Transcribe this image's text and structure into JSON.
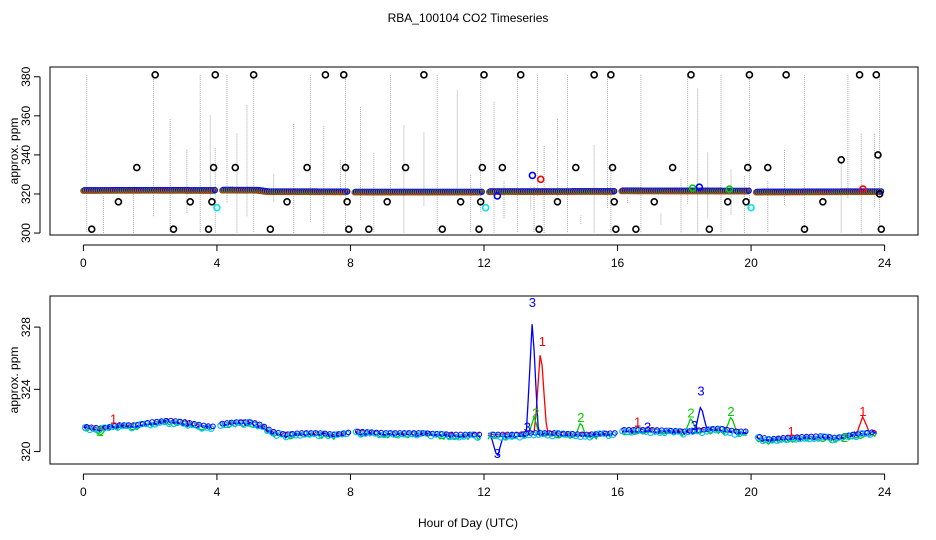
{
  "chart_data": [
    {
      "type": "scatter",
      "title": "RBA_100104  CO2 Timeseries",
      "ylabel": "approx. ppm",
      "xlim": [
        -1,
        25
      ],
      "ylim": [
        299,
        385
      ],
      "xticks": [
        0,
        4,
        8,
        12,
        16,
        20,
        24
      ],
      "yticks": [
        300,
        320,
        340,
        360,
        380
      ],
      "baseline": [
        [
          0,
          321.8
        ],
        [
          2,
          321.9
        ],
        [
          3.9,
          321.8
        ],
        [
          4.1,
          322
        ],
        [
          5.2,
          321.9
        ],
        [
          5.5,
          321.2
        ],
        [
          7.9,
          321.1
        ],
        [
          8.1,
          321
        ],
        [
          11.9,
          321
        ],
        [
          12.1,
          321.2
        ],
        [
          15.9,
          321.3
        ],
        [
          16.1,
          321.6
        ],
        [
          19.9,
          321.5
        ],
        [
          20.1,
          321.0
        ],
        [
          23.8,
          321.2
        ]
      ],
      "gaps": [
        [
          3.9,
          4.1
        ],
        [
          7.9,
          8.1
        ],
        [
          11.9,
          12.1
        ],
        [
          15.9,
          16.1
        ],
        [
          19.9,
          20.1
        ]
      ],
      "vertical_lines_x": [
        0.1,
        0.6,
        1.5,
        2.1,
        2.6,
        3.1,
        3.5,
        3.8,
        3.95,
        4.3,
        4.6,
        4.9,
        5.1,
        5.7,
        6.3,
        6.8,
        7.2,
        7.7,
        7.85,
        8.3,
        8.7,
        9.2,
        9.6,
        10.2,
        10.6,
        11.2,
        11.6,
        11.9,
        12.3,
        12.6,
        13.0,
        13.4,
        13.5,
        13.6,
        13.8,
        14.2,
        14.5,
        14.9,
        15.3,
        15.7,
        15.8,
        16.3,
        16.7,
        17.3,
        17.9,
        18.1,
        18.4,
        18.7,
        19.1,
        19.4,
        19.8,
        19.95,
        20.5,
        21.0,
        21.6,
        22.1,
        22.7,
        22.9,
        23.3,
        23.7,
        23.85
      ],
      "outliers": [
        {
          "x": 0.25,
          "y": 302,
          "c": "#000000"
        },
        {
          "x": 1.05,
          "y": 316,
          "c": "#000000"
        },
        {
          "x": 1.6,
          "y": 333.5,
          "c": "#000000"
        },
        {
          "x": 2.15,
          "y": 381,
          "c": "#000000"
        },
        {
          "x": 2.7,
          "y": 302,
          "c": "#000000"
        },
        {
          "x": 3.2,
          "y": 316,
          "c": "#000000"
        },
        {
          "x": 3.75,
          "y": 302,
          "c": "#000000"
        },
        {
          "x": 3.85,
          "y": 316,
          "c": "#000000"
        },
        {
          "x": 3.9,
          "y": 333.5,
          "c": "#000000"
        },
        {
          "x": 3.95,
          "y": 381,
          "c": "#000000"
        },
        {
          "x": 4.0,
          "y": 313,
          "c": "#00e5ee"
        },
        {
          "x": 4.55,
          "y": 333.5,
          "c": "#000000"
        },
        {
          "x": 5.1,
          "y": 381,
          "c": "#000000"
        },
        {
          "x": 5.6,
          "y": 302,
          "c": "#000000"
        },
        {
          "x": 6.1,
          "y": 316,
          "c": "#000000"
        },
        {
          "x": 6.7,
          "y": 333.5,
          "c": "#000000"
        },
        {
          "x": 7.25,
          "y": 381,
          "c": "#000000"
        },
        {
          "x": 7.8,
          "y": 381,
          "c": "#000000"
        },
        {
          "x": 7.85,
          "y": 333.5,
          "c": "#000000"
        },
        {
          "x": 7.9,
          "y": 316,
          "c": "#000000"
        },
        {
          "x": 7.95,
          "y": 302,
          "c": "#000000"
        },
        {
          "x": 8.55,
          "y": 302,
          "c": "#000000"
        },
        {
          "x": 9.1,
          "y": 316,
          "c": "#000000"
        },
        {
          "x": 9.65,
          "y": 333.5,
          "c": "#000000"
        },
        {
          "x": 10.2,
          "y": 381,
          "c": "#000000"
        },
        {
          "x": 10.75,
          "y": 302,
          "c": "#000000"
        },
        {
          "x": 11.3,
          "y": 316,
          "c": "#000000"
        },
        {
          "x": 11.85,
          "y": 302,
          "c": "#000000"
        },
        {
          "x": 11.9,
          "y": 316,
          "c": "#000000"
        },
        {
          "x": 11.95,
          "y": 333.5,
          "c": "#000000"
        },
        {
          "x": 12.0,
          "y": 381,
          "c": "#000000"
        },
        {
          "x": 12.05,
          "y": 313,
          "c": "#00e5ee"
        },
        {
          "x": 12.4,
          "y": 319,
          "c": "#0000ff"
        },
        {
          "x": 12.55,
          "y": 333.5,
          "c": "#000000"
        },
        {
          "x": 13.1,
          "y": 381,
          "c": "#000000"
        },
        {
          "x": 13.45,
          "y": 329.5,
          "c": "#0000ff"
        },
        {
          "x": 13.65,
          "y": 302,
          "c": "#000000"
        },
        {
          "x": 13.7,
          "y": 327.5,
          "c": "#ff0000"
        },
        {
          "x": 14.2,
          "y": 316,
          "c": "#000000"
        },
        {
          "x": 14.75,
          "y": 333.5,
          "c": "#000000"
        },
        {
          "x": 15.3,
          "y": 381,
          "c": "#000000"
        },
        {
          "x": 15.8,
          "y": 381,
          "c": "#000000"
        },
        {
          "x": 15.85,
          "y": 333.5,
          "c": "#000000"
        },
        {
          "x": 15.9,
          "y": 316,
          "c": "#000000"
        },
        {
          "x": 15.95,
          "y": 302,
          "c": "#000000"
        },
        {
          "x": 16.55,
          "y": 302,
          "c": "#000000"
        },
        {
          "x": 17.1,
          "y": 316,
          "c": "#000000"
        },
        {
          "x": 17.65,
          "y": 333.5,
          "c": "#000000"
        },
        {
          "x": 18.2,
          "y": 381,
          "c": "#000000"
        },
        {
          "x": 18.25,
          "y": 323,
          "c": "#00cd00"
        },
        {
          "x": 18.45,
          "y": 323.5,
          "c": "#0000ff"
        },
        {
          "x": 18.75,
          "y": 302,
          "c": "#000000"
        },
        {
          "x": 19.3,
          "y": 316,
          "c": "#000000"
        },
        {
          "x": 19.35,
          "y": 322.5,
          "c": "#00cd00"
        },
        {
          "x": 19.85,
          "y": 316,
          "c": "#000000"
        },
        {
          "x": 19.9,
          "y": 333.5,
          "c": "#000000"
        },
        {
          "x": 19.95,
          "y": 381,
          "c": "#000000"
        },
        {
          "x": 20.0,
          "y": 313,
          "c": "#00e5ee"
        },
        {
          "x": 20.5,
          "y": 333.5,
          "c": "#000000"
        },
        {
          "x": 21.05,
          "y": 381,
          "c": "#000000"
        },
        {
          "x": 21.6,
          "y": 302,
          "c": "#000000"
        },
        {
          "x": 22.15,
          "y": 316,
          "c": "#000000"
        },
        {
          "x": 22.7,
          "y": 337.5,
          "c": "#000000"
        },
        {
          "x": 23.25,
          "y": 381,
          "c": "#000000"
        },
        {
          "x": 23.35,
          "y": 322.5,
          "c": "#ff0000"
        },
        {
          "x": 23.75,
          "y": 381,
          "c": "#000000"
        },
        {
          "x": 23.8,
          "y": 340,
          "c": "#000000"
        },
        {
          "x": 23.85,
          "y": 320,
          "c": "#000000"
        },
        {
          "x": 23.9,
          "y": 302,
          "c": "#000000"
        }
      ]
    },
    {
      "type": "line",
      "ylabel": "approx. ppm",
      "xlabel": "Hour of Day (UTC)",
      "xlim": [
        -1,
        25
      ],
      "ylim": [
        319.2,
        330
      ],
      "xticks": [
        0,
        4,
        8,
        12,
        16,
        20,
        24
      ],
      "yticks": [
        320,
        324,
        328
      ],
      "baseline": [
        [
          0,
          321.5
        ],
        [
          0.5,
          321.4
        ],
        [
          1,
          321.6
        ],
        [
          1.5,
          321.6
        ],
        [
          2,
          321.8
        ],
        [
          2.5,
          321.9
        ],
        [
          3,
          321.8
        ],
        [
          3.5,
          321.6
        ],
        [
          3.8,
          321.5
        ],
        [
          4.1,
          321.7
        ],
        [
          4.5,
          321.8
        ],
        [
          5,
          321.8
        ],
        [
          5.3,
          321.6
        ],
        [
          5.6,
          321.2
        ],
        [
          6,
          321
        ],
        [
          6.5,
          321.1
        ],
        [
          7,
          321.1
        ],
        [
          7.5,
          321
        ],
        [
          7.8,
          321.1
        ],
        [
          8.1,
          321.2
        ],
        [
          9,
          321.1
        ],
        [
          10,
          321.1
        ],
        [
          11,
          321
        ],
        [
          11.9,
          321.0
        ],
        [
          12.1,
          321.0
        ],
        [
          13,
          321.0
        ],
        [
          13.4,
          321.1
        ],
        [
          14,
          321.1
        ],
        [
          15,
          321.0
        ],
        [
          15.9,
          321.1
        ],
        [
          16.1,
          321.3
        ],
        [
          17,
          321.3
        ],
        [
          18,
          321.2
        ],
        [
          18.5,
          321.3
        ],
        [
          19,
          321.4
        ],
        [
          19.5,
          321.2
        ],
        [
          19.9,
          321.2
        ],
        [
          20.1,
          320.9
        ],
        [
          20.5,
          320.7
        ],
        [
          21,
          320.8
        ],
        [
          22,
          320.9
        ],
        [
          22.5,
          320.8
        ],
        [
          23,
          321.0
        ],
        [
          23.8,
          321.2
        ]
      ],
      "gaps": [
        [
          3.9,
          4.1
        ],
        [
          7.9,
          8.1
        ],
        [
          11.9,
          12.1
        ],
        [
          15.9,
          16.1
        ],
        [
          19.9,
          20.1
        ]
      ],
      "series": [
        {
          "name": "1",
          "color": "#ff0000",
          "offset": 0.25,
          "spikes": [
            [
              13.7,
              326.8
            ],
            [
              16.6,
              321.6
            ],
            [
              21.2,
              321.0
            ],
            [
              23.35,
              322.3
            ]
          ]
        },
        {
          "name": "2",
          "color": "#00cd00",
          "offset": -0.25,
          "spikes": [
            [
              0.5,
              321.0
            ],
            [
              13.5,
              322.2
            ],
            [
              14.9,
              321.9
            ],
            [
              18.2,
              322.2
            ],
            [
              19.4,
              322.3
            ]
          ]
        },
        {
          "name": "3",
          "color": "#0000ff",
          "offset": 0,
          "spikes": [
            [
              12.4,
              319.6
            ],
            [
              13.45,
              328.6
            ],
            [
              16.9,
              321.3
            ],
            [
              18.5,
              323.0
            ]
          ]
        }
      ],
      "labels": [
        {
          "text": "1",
          "x": 13.75,
          "y": 326.8,
          "color": "#ff0000"
        },
        {
          "text": "1",
          "x": 16.6,
          "y": 321.6,
          "color": "#ff0000"
        },
        {
          "text": "1",
          "x": 21.2,
          "y": 321.0,
          "color": "#ff0000"
        },
        {
          "text": "1",
          "x": 23.35,
          "y": 322.3,
          "color": "#ff0000"
        },
        {
          "text": "1",
          "x": 0.9,
          "y": 321.8,
          "color": "#ff0000"
        },
        {
          "text": "2",
          "x": 0.5,
          "y": 321.0,
          "color": "#00cd00"
        },
        {
          "text": "2",
          "x": 13.55,
          "y": 322.2,
          "color": "#00cd00"
        },
        {
          "text": "2",
          "x": 14.9,
          "y": 321.9,
          "color": "#00cd00"
        },
        {
          "text": "2",
          "x": 18.2,
          "y": 322.2,
          "color": "#00cd00"
        },
        {
          "text": "2",
          "x": 19.4,
          "y": 322.3,
          "color": "#00cd00"
        },
        {
          "text": "2",
          "x": 22.8,
          "y": 320.6,
          "color": "#00cd00"
        },
        {
          "text": "3",
          "x": 13.45,
          "y": 329.3,
          "color": "#0000ff"
        },
        {
          "text": "3",
          "x": 12.4,
          "y": 319.6,
          "color": "#0000ff"
        },
        {
          "text": "3",
          "x": 13.3,
          "y": 321.3,
          "color": "#0000ff"
        },
        {
          "text": "3",
          "x": 16.9,
          "y": 321.3,
          "color": "#0000ff"
        },
        {
          "text": "3",
          "x": 18.5,
          "y": 323.6,
          "color": "#0000ff"
        },
        {
          "text": "3",
          "x": 18.3,
          "y": 321.4,
          "color": "#0000ff"
        }
      ]
    }
  ]
}
